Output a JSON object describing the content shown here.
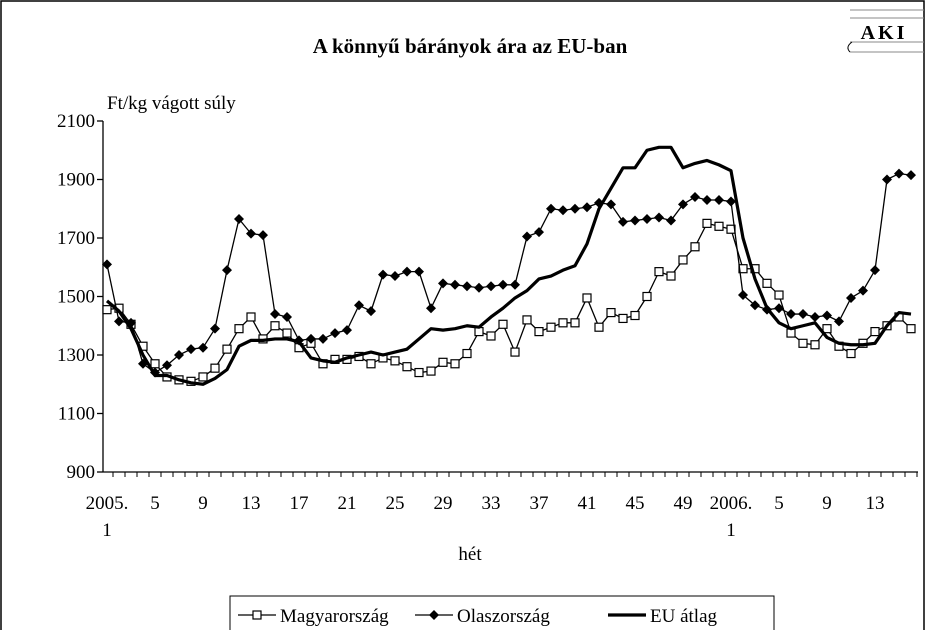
{
  "logo": "AKI",
  "chart_data": {
    "type": "line",
    "title": "A könnyű bárányok ára az EU-ban",
    "y_label": "Ft/kg vágott súly",
    "x_label": "hét",
    "categories": [
      "2005.\n1",
      null,
      null,
      null,
      "5",
      null,
      null,
      null,
      "9",
      null,
      null,
      null,
      "13",
      null,
      null,
      null,
      "17",
      null,
      null,
      null,
      "21",
      null,
      null,
      null,
      "25",
      null,
      null,
      null,
      "29",
      null,
      null,
      null,
      "33",
      null,
      null,
      null,
      "37",
      null,
      null,
      null,
      "41",
      null,
      null,
      null,
      "45",
      null,
      null,
      null,
      "49",
      null,
      null,
      null,
      "2006.\n1",
      null,
      null,
      null,
      "5",
      null,
      null,
      null,
      "9",
      null,
      null,
      null,
      "13",
      null,
      null,
      null
    ],
    "ylim": [
      900,
      2100
    ],
    "yticks": [
      900,
      1100,
      1300,
      1500,
      1700,
      1900,
      2100
    ],
    "series": [
      {
        "name": "Magyarország",
        "color": "#000000",
        "marker": "square",
        "line_width": 1.3,
        "values": [
          1455,
          1460,
          1405,
          1330,
          1270,
          1225,
          1215,
          1210,
          1225,
          1255,
          1320,
          1390,
          1430,
          1355,
          1400,
          1375,
          1325,
          1340,
          1270,
          1285,
          1285,
          1295,
          1270,
          1290,
          1280,
          1260,
          1240,
          1245,
          1275,
          1270,
          1305,
          1380,
          1365,
          1405,
          1310,
          1420,
          1380,
          1395,
          1410,
          1410,
          1495,
          1395,
          1445,
          1425,
          1435,
          1500,
          1585,
          1570,
          1625,
          1670,
          1750,
          1740,
          1730,
          1595,
          1595,
          1545,
          1505,
          1375,
          1340,
          1335,
          1390,
          1330,
          1305,
          1340,
          1380,
          1400,
          1430,
          1390
        ]
      },
      {
        "name": "Olaszország",
        "color": "#000000",
        "marker": "diamond",
        "line_width": 1.3,
        "values": [
          1610,
          1415,
          1410,
          1270,
          1240,
          1265,
          1300,
          1320,
          1325,
          1390,
          1590,
          1765,
          1715,
          1710,
          1440,
          1430,
          1350,
          1355,
          1355,
          1375,
          1385,
          1470,
          1450,
          1575,
          1570,
          1585,
          1585,
          1460,
          1545,
          1540,
          1535,
          1530,
          1535,
          1540,
          1540,
          1705,
          1720,
          1800,
          1795,
          1800,
          1805,
          1820,
          1815,
          1755,
          1760,
          1765,
          1770,
          1760,
          1815,
          1840,
          1830,
          1830,
          1825,
          1505,
          1470,
          1455,
          1460,
          1440,
          1440,
          1430,
          1435,
          1415,
          1495,
          1520,
          1590,
          1900,
          1920,
          1915
        ]
      },
      {
        "name": "EU átlag",
        "color": "#000000",
        "marker": "none",
        "line_width": 3.2,
        "values": [
          1485,
          1450,
          1390,
          1300,
          1230,
          1230,
          1215,
          1205,
          1200,
          1220,
          1250,
          1330,
          1350,
          1350,
          1355,
          1355,
          1345,
          1290,
          1280,
          1275,
          1290,
          1300,
          1310,
          1300,
          1310,
          1320,
          1355,
          1390,
          1385,
          1390,
          1400,
          1395,
          1430,
          1460,
          1495,
          1520,
          1560,
          1570,
          1590,
          1605,
          1680,
          1800,
          1870,
          1940,
          1940,
          2000,
          2010,
          2010,
          1940,
          1955,
          1965,
          1950,
          1930,
          1700,
          1560,
          1460,
          1410,
          1390,
          1400,
          1410,
          1360,
          1340,
          1335,
          1335,
          1340,
          1400,
          1445,
          1440
        ]
      }
    ]
  }
}
